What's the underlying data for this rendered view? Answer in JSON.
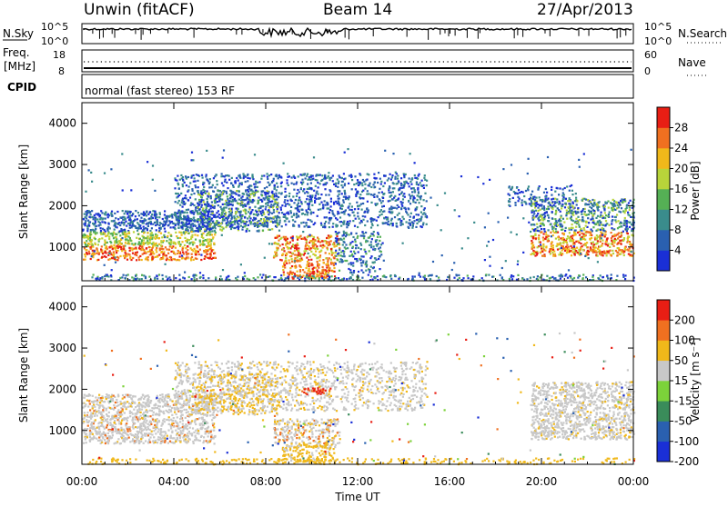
{
  "header": {
    "station": "Unwin (fitACF)",
    "beam": "Beam 14",
    "date": "27/Apr/2013"
  },
  "noise_panel": {
    "left_label": "N.Sky",
    "right_label": "N.Search",
    "left_ticks": [
      "10^5",
      "10^0"
    ],
    "right_ticks": [
      "10^5",
      "10^0"
    ]
  },
  "freq_panel": {
    "left_label_1": "Freq.",
    "left_label_2": "[MHz]",
    "left_ticks": [
      "18",
      "8"
    ],
    "right_label": "Nave",
    "right_ticks": [
      "60",
      "0"
    ]
  },
  "cpid_panel": {
    "label": "CPID",
    "text": "normal (fast stereo) 153 RF"
  },
  "chart_data": [
    {
      "type": "heatmap",
      "title": "Power",
      "ylabel": "Slant Range [km]",
      "xlabel": "Time UT",
      "ylim": [
        180,
        4500
      ],
      "yticks": [
        "1000",
        "2000",
        "3000",
        "4000"
      ],
      "xticks": [
        "00:00",
        "04:00",
        "08:00",
        "12:00",
        "16:00",
        "20:00",
        "00:00"
      ],
      "colorbar_label": "Power [dB]",
      "colorbar_ticks": [
        "4",
        "8",
        "12",
        "16",
        "20",
        "24",
        "28"
      ],
      "colorbar_colors": [
        "#1a2fd6",
        "#2a60b0",
        "#3a8c8c",
        "#55b055",
        "#b8d43a",
        "#f0b81a",
        "#f07020",
        "#e81e14"
      ],
      "scatter_bands": [
        {
          "t0": 0.0,
          "t1": 5.5,
          "r0": 700,
          "r1": 1800,
          "level": "high"
        },
        {
          "t0": 8.0,
          "t1": 12.0,
          "r0": 300,
          "r1": 1300,
          "level": "high"
        },
        {
          "t0": 4.0,
          "t1": 15.0,
          "r0": 1500,
          "r1": 2800,
          "level": "low"
        },
        {
          "t0": 19.5,
          "t1": 24.0,
          "r0": 700,
          "r1": 2100,
          "level": "high"
        }
      ]
    },
    {
      "type": "heatmap",
      "title": "Velocity",
      "ylabel": "Slant Range [km]",
      "xlabel": "Time UT",
      "ylim": [
        180,
        4500
      ],
      "yticks": [
        "1000",
        "2000",
        "3000",
        "4000"
      ],
      "xticks": [
        "00:00",
        "04:00",
        "08:00",
        "12:00",
        "16:00",
        "20:00",
        "00:00"
      ],
      "colorbar_label": "Velocity [m s⁻¹]",
      "colorbar_ticks": [
        "200",
        "100",
        "50",
        "15",
        "-15",
        "-50",
        "-100",
        "-200"
      ],
      "colorbar_colors": [
        "#1a2fd6",
        "#2a60b0",
        "#3a8c5a",
        "#7cd23a",
        "#c8c8c8",
        "#f0b81a",
        "#f07020",
        "#e81e14"
      ]
    }
  ],
  "footer": {
    "xlabel": "Time UT"
  }
}
